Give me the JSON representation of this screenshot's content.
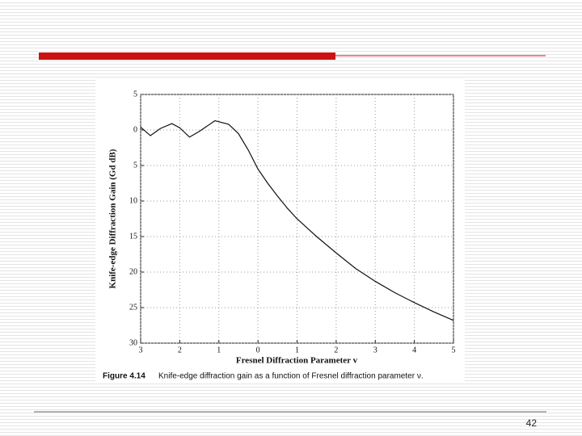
{
  "chart_data": {
    "type": "line",
    "xlabel": "Fresnel Diffraction Parameter v",
    "ylabel": "Knife-edge Diffraction Gain (Gd dB)",
    "figure_label": "Figure 4.14",
    "caption": "Knife-edge diffraction gain as a function of Fresnel diffraction parameter ν.",
    "x": [
      -3,
      -2.75,
      -2.5,
      -2.2,
      -2,
      -1.75,
      -1.5,
      -1.1,
      -0.75,
      -0.5,
      -0.25,
      0,
      0.25,
      0.5,
      0.75,
      1,
      1.5,
      2,
      2.5,
      3,
      3.5,
      4,
      4.5,
      5
    ],
    "series": [
      {
        "color": "#111111",
        "values": [
          0.4,
          -0.8,
          0.2,
          0.9,
          0.3,
          -1.0,
          -0.2,
          1.3,
          0.8,
          -0.5,
          -2.8,
          -5.5,
          -7.5,
          -9.3,
          -11,
          -12.5,
          -15,
          -17.3,
          -19.5,
          -21.3,
          -22.9,
          -24.3,
          -25.6,
          -26.8
        ]
      }
    ],
    "xlim": [
      -3,
      5
    ],
    "xticks": [
      {
        "value": -3,
        "label": "3"
      },
      {
        "value": -2,
        "label": "2"
      },
      {
        "value": -1,
        "label": "1"
      },
      0,
      1,
      2,
      3,
      4,
      5
    ],
    "ylim": [
      -30,
      5
    ],
    "yticks": [
      5,
      0,
      {
        "value": -5,
        "label": "5"
      },
      {
        "value": -10,
        "label": "10"
      },
      {
        "value": -15,
        "label": "15"
      },
      {
        "value": -20,
        "label": "20"
      },
      {
        "value": -25,
        "label": "25"
      },
      {
        "value": -30,
        "label": "30"
      }
    ],
    "grid": true
  },
  "slide": {
    "page_number": "42"
  }
}
